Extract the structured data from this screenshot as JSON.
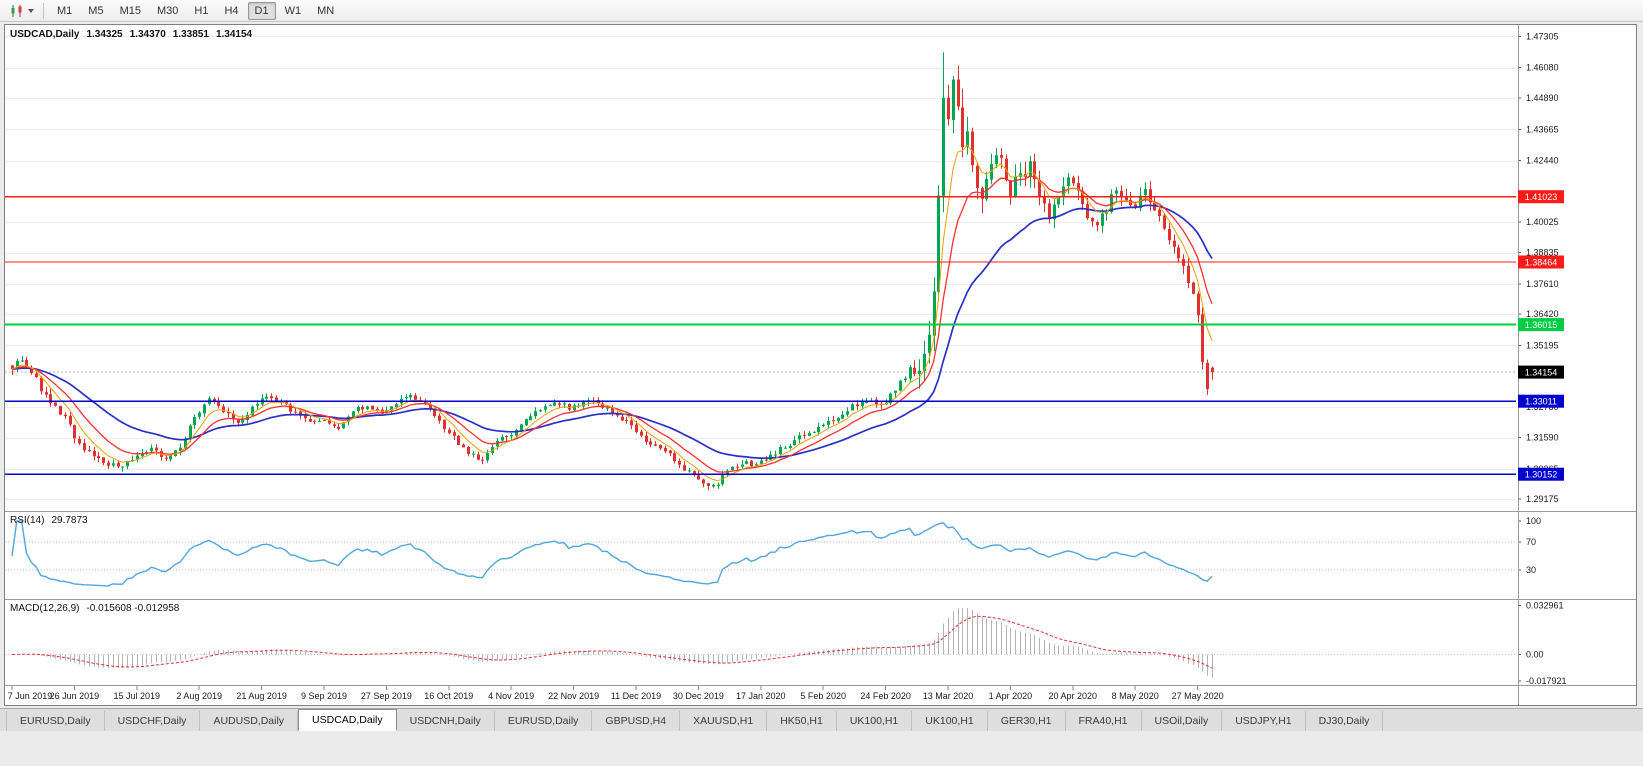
{
  "app": {
    "name": "trading-terminal",
    "background": "#ececec"
  },
  "toolbar": {
    "chart_type_button": {
      "icon": "candlestick-chart-icon",
      "caret_icon": "dropdown-caret-icon"
    },
    "timeframes": [
      {
        "label": "M1",
        "active": false
      },
      {
        "label": "M5",
        "active": false
      },
      {
        "label": "M15",
        "active": false
      },
      {
        "label": "M30",
        "active": false
      },
      {
        "label": "H1",
        "active": false
      },
      {
        "label": "H4",
        "active": false
      },
      {
        "label": "D1",
        "active": true
      },
      {
        "label": "W1",
        "active": false
      },
      {
        "label": "MN",
        "active": false
      }
    ]
  },
  "header": {
    "symbol": "USDCAD,Daily",
    "open": "1.34325",
    "high": "1.34370",
    "low": "1.33851",
    "close": "1.34154"
  },
  "indicators": {
    "rsi": {
      "label": "RSI(14)",
      "value": "29.7873",
      "axis_labels": [
        "100",
        "70",
        "30"
      ]
    },
    "macd": {
      "label": "MACD(12,26,9)",
      "values": "-0.015608 -0.012958",
      "axis_labels": [
        "0.032961",
        "0.00",
        "-0.017921"
      ]
    }
  },
  "price_axis": {
    "ticks": [
      "1.47305",
      "1.46080",
      "1.44890",
      "1.43665",
      "1.42440",
      "1.40025",
      "1.38835",
      "1.37610",
      "1.36420",
      "1.35195",
      "1.32780",
      "1.31590",
      "1.30365",
      "1.29175"
    ]
  },
  "levels": [
    {
      "value": 1.41023,
      "label": "1.41023",
      "color": "#FF1A1A",
      "line_width": 1.2
    },
    {
      "value": 1.38464,
      "label": "1.38464",
      "color": "#FF1A1A",
      "line_width": 1.2
    },
    {
      "value": 1.36015,
      "label": "1.36015",
      "color": "#00CC44",
      "line_width": 1.8
    },
    {
      "value": 1.33011,
      "label": "1.33011",
      "color": "#0000CC",
      "line_width": 1.8
    },
    {
      "value": 1.30152,
      "label": "1.30152",
      "color": "#0000CC",
      "line_width": 1.8
    }
  ],
  "bid": {
    "value": 1.34154,
    "label": "1.34154",
    "badge_color": "#000000"
  },
  "date_axis": [
    "7 Jun 2019",
    "26 Jun 2019",
    "15 Jul 2019",
    "2 Aug 2019",
    "21 Aug 2019",
    "9 Sep 2019",
    "27 Sep 2019",
    "16 Oct 2019",
    "4 Nov 2019",
    "22 Nov 2019",
    "11 Dec 2019",
    "30 Dec 2019",
    "17 Jan 2020",
    "5 Feb 2020",
    "24 Feb 2020",
    "13 Mar 2020",
    "1 Apr 2020",
    "20 Apr 2020",
    "8 May 2020",
    "27 May 2020"
  ],
  "tabs": {
    "active_index": 3,
    "items": [
      "EURUSD,Daily",
      "USDCHF,Daily",
      "AUDUSD,Daily",
      "USDCAD,Daily",
      "USDCNH,Daily",
      "EURUSD,Daily",
      "GBPUSD,H4",
      "XAUUSD,H1",
      "HK50,H1",
      "UK100,H1",
      "UK100,H1",
      "GER30,H1",
      "FRA40,H1",
      "USOil,Daily",
      "USDJPY,H1",
      "DJ30,Daily"
    ],
    "active_label": "USDCAD,Daily"
  },
  "chart_data": {
    "type": "candlestick",
    "title": "USDCAD Daily with RSI(14) and MACD(12,26,9)",
    "symbol": "USDCAD",
    "timeframe": "Daily",
    "bars": 251,
    "seed": 7,
    "ylim": [
      1.2875,
      1.4775
    ],
    "bull_color": "#00A651",
    "bear_color": "#E03030",
    "anchors_close": [
      [
        0,
        1.344
      ],
      [
        2,
        1.3468
      ],
      [
        4,
        1.3415
      ],
      [
        6,
        1.335
      ],
      [
        8,
        1.329
      ],
      [
        11,
        1.3235
      ],
      [
        13,
        1.316
      ],
      [
        16,
        1.3098
      ],
      [
        19,
        1.3058
      ],
      [
        22,
        1.3042
      ],
      [
        26,
        1.3078
      ],
      [
        29,
        1.3112
      ],
      [
        32,
        1.3068
      ],
      [
        35,
        1.313
      ],
      [
        38,
        1.3235
      ],
      [
        41,
        1.3305
      ],
      [
        44,
        1.326
      ],
      [
        47,
        1.3215
      ],
      [
        50,
        1.327
      ],
      [
        53,
        1.3318
      ],
      [
        56,
        1.3295
      ],
      [
        59,
        1.325
      ],
      [
        62,
        1.3232
      ],
      [
        65,
        1.3228
      ],
      [
        68,
        1.3192
      ],
      [
        71,
        1.3258
      ],
      [
        74,
        1.3288
      ],
      [
        77,
        1.3248
      ],
      [
        80,
        1.3295
      ],
      [
        83,
        1.3322
      ],
      [
        86,
        1.3288
      ],
      [
        89,
        1.3215
      ],
      [
        92,
        1.3158
      ],
      [
        95,
        1.3095
      ],
      [
        98,
        1.3068
      ],
      [
        101,
        1.3142
      ],
      [
        104,
        1.3178
      ],
      [
        107,
        1.3222
      ],
      [
        110,
        1.3268
      ],
      [
        113,
        1.3298
      ],
      [
        116,
        1.3278
      ],
      [
        119,
        1.3302
      ],
      [
        122,
        1.3288
      ],
      [
        125,
        1.3262
      ],
      [
        128,
        1.3222
      ],
      [
        131,
        1.3158
      ],
      [
        134,
        1.3122
      ],
      [
        137,
        1.3088
      ],
      [
        140,
        1.3038
      ],
      [
        143,
        1.2992
      ],
      [
        145,
        1.296
      ],
      [
        147,
        1.2982
      ],
      [
        149,
        1.3032
      ],
      [
        152,
        1.3062
      ],
      [
        155,
        1.3048
      ],
      [
        158,
        1.3092
      ],
      [
        161,
        1.3122
      ],
      [
        164,
        1.3158
      ],
      [
        167,
        1.3192
      ],
      [
        170,
        1.3222
      ],
      [
        173,
        1.3258
      ],
      [
        176,
        1.3292
      ],
      [
        179,
        1.3312
      ],
      [
        181,
        1.3278
      ],
      [
        183,
        1.3318
      ],
      [
        185,
        1.3388
      ],
      [
        187,
        1.3428
      ],
      [
        189,
        1.3398
      ],
      [
        190,
        1.3455
      ],
      [
        191,
        1.3548
      ],
      [
        192,
        1.3742
      ],
      [
        193,
        1.408
      ],
      [
        194,
        1.451
      ],
      [
        195,
        1.437
      ],
      [
        196,
        1.4555
      ],
      [
        197,
        1.447
      ],
      [
        198,
        1.4275
      ],
      [
        199,
        1.437
      ],
      [
        200,
        1.421
      ],
      [
        202,
        1.4075
      ],
      [
        204,
        1.4215
      ],
      [
        206,
        1.4255
      ],
      [
        208,
        1.4125
      ],
      [
        210,
        1.4185
      ],
      [
        212,
        1.4228
      ],
      [
        214,
        1.4095
      ],
      [
        216,
        1.4018
      ],
      [
        218,
        1.4115
      ],
      [
        220,
        1.4165
      ],
      [
        222,
        1.4108
      ],
      [
        224,
        1.4042
      ],
      [
        226,
        1.3988
      ],
      [
        228,
        1.4062
      ],
      [
        230,
        1.4125
      ],
      [
        232,
        1.4068
      ],
      [
        234,
        1.4082
      ],
      [
        236,
        1.4128
      ],
      [
        238,
        1.4058
      ],
      [
        240,
        1.3988
      ],
      [
        242,
        1.3905
      ],
      [
        244,
        1.3822
      ],
      [
        246,
        1.3705
      ],
      [
        247,
        1.3622
      ],
      [
        248,
        1.3468
      ],
      [
        249,
        1.3362
      ],
      [
        250,
        1.34154
      ]
    ],
    "volatility": [
      [
        0,
        0.0028
      ],
      [
        14,
        0.0022
      ],
      [
        100,
        0.002
      ],
      [
        140,
        0.0022
      ],
      [
        182,
        0.004
      ],
      [
        189,
        0.0085
      ],
      [
        196,
        0.0095
      ],
      [
        203,
        0.006
      ],
      [
        214,
        0.0048
      ],
      [
        240,
        0.0042
      ],
      [
        247,
        0.0038
      ]
    ],
    "last_candle": {
      "open": 1.34325,
      "high": 1.3437,
      "low": 1.33851,
      "close": 1.34154
    },
    "spike": {
      "day": 194,
      "high": 1.4668
    },
    "trough": {
      "day": 145,
      "low": 1.2952
    },
    "moving_averages": [
      {
        "name": "fast",
        "period": 6,
        "color": "#E8A200",
        "width": 1
      },
      {
        "name": "mid",
        "period": 12,
        "color": "#FF3030",
        "width": 1.3
      },
      {
        "name": "slow",
        "period": 30,
        "color": "#2830C8",
        "width": 1.7
      }
    ],
    "rsi": {
      "period": 14,
      "current": 29.7873,
      "color": "#4FA6DC",
      "levels": [
        70,
        30
      ],
      "range": [
        0,
        100
      ]
    },
    "macd": {
      "fast": 12,
      "slow": 26,
      "signal": 9,
      "current_macd": -0.015608,
      "current_signal": -0.012958,
      "ylim": [
        -0.017921,
        0.032961
      ],
      "histogram_color": "#B4B4B4",
      "signal_color": "#E03030"
    }
  }
}
